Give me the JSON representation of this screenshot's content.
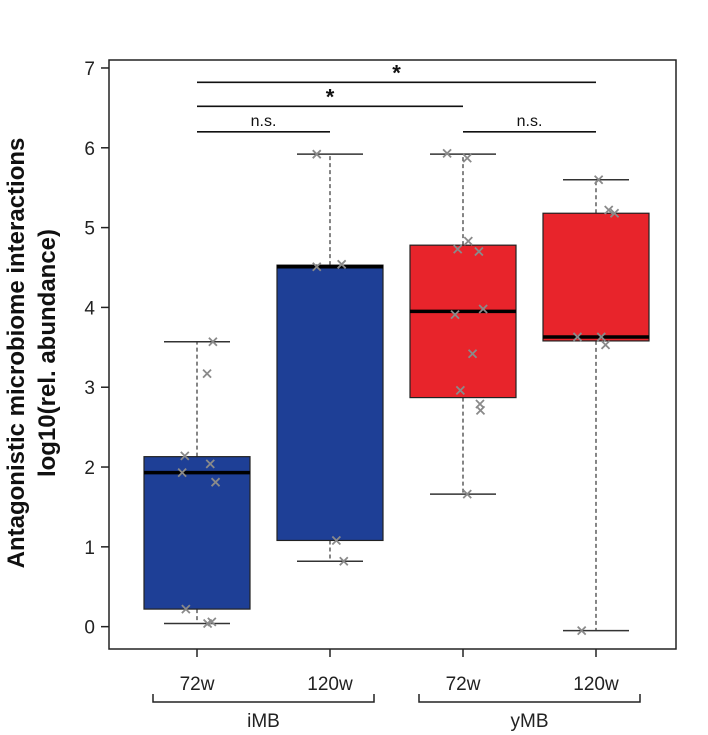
{
  "chart_data": {
    "type": "box",
    "title": "",
    "ylabel_line1": "Antagonistic microbiome interactions",
    "ylabel_line2": "log10(rel. abundance)",
    "ylim": [
      -0.28,
      7.1
    ],
    "yticks": [
      0,
      1,
      2,
      3,
      4,
      5,
      6,
      7
    ],
    "categories": [
      "72w",
      "120w",
      "72w",
      "120w"
    ],
    "groups": [
      {
        "label": "iMB",
        "members": [
          0,
          1
        ]
      },
      {
        "label": "yMB",
        "members": [
          2,
          3
        ]
      }
    ],
    "colors": {
      "iMB": "#1e3f96",
      "yMB": "#e8242b",
      "points": "#8a8a8a"
    },
    "boxes": [
      {
        "group": "iMB",
        "category": "72w",
        "q1": 0.22,
        "median": 1.93,
        "q3": 2.13,
        "whisker_low": 0.04,
        "whisker_high": 3.57,
        "points": [
          [
            -0.23,
            2.14
          ],
          [
            -0.28,
            1.93
          ],
          [
            0.25,
            2.04
          ],
          [
            0.35,
            1.81
          ],
          [
            0.19,
            3.17
          ],
          [
            0.3,
            3.57
          ],
          [
            -0.21,
            0.22
          ],
          [
            0.2,
            0.04
          ],
          [
            0.28,
            0.06
          ]
        ]
      },
      {
        "group": "iMB",
        "category": "120w",
        "q1": 1.08,
        "median": 4.51,
        "q3": 4.53,
        "whisker_low": 0.82,
        "whisker_high": 5.92,
        "points": [
          [
            -0.25,
            5.92
          ],
          [
            -0.25,
            4.51
          ],
          [
            0.22,
            4.54
          ],
          [
            0.12,
            1.08
          ],
          [
            0.26,
            0.82
          ]
        ]
      },
      {
        "group": "yMB",
        "category": "72w",
        "q1": 2.87,
        "median": 3.95,
        "q3": 4.78,
        "whisker_low": 1.66,
        "whisker_high": 5.92,
        "points": [
          [
            -0.3,
            5.93
          ],
          [
            0.08,
            5.87
          ],
          [
            -0.1,
            4.73
          ],
          [
            0.1,
            4.83
          ],
          [
            0.3,
            4.7
          ],
          [
            -0.15,
            3.91
          ],
          [
            0.38,
            3.98
          ],
          [
            0.18,
            3.42
          ],
          [
            -0.05,
            2.96
          ],
          [
            0.32,
            2.79
          ],
          [
            0.33,
            2.71
          ],
          [
            0.08,
            1.66
          ]
        ]
      },
      {
        "group": "yMB",
        "category": "120w",
        "q1": 3.58,
        "median": 3.63,
        "q3": 5.18,
        "whisker_low": -0.05,
        "whisker_high": 5.6,
        "points": [
          [
            0.05,
            5.6
          ],
          [
            0.24,
            5.22
          ],
          [
            0.35,
            5.18
          ],
          [
            -0.35,
            3.63
          ],
          [
            0.1,
            3.63
          ],
          [
            0.18,
            3.53
          ],
          [
            -0.27,
            -0.05
          ]
        ]
      }
    ],
    "significance": [
      {
        "from": 0,
        "to": 3,
        "y": 6.82,
        "label": "*"
      },
      {
        "from": 0,
        "to": 2,
        "y": 6.52,
        "label": "*"
      },
      {
        "from": 0,
        "to": 1,
        "y": 6.2,
        "label": "n.s."
      },
      {
        "from": 2,
        "to": 3,
        "y": 6.2,
        "label": "n.s."
      }
    ]
  }
}
